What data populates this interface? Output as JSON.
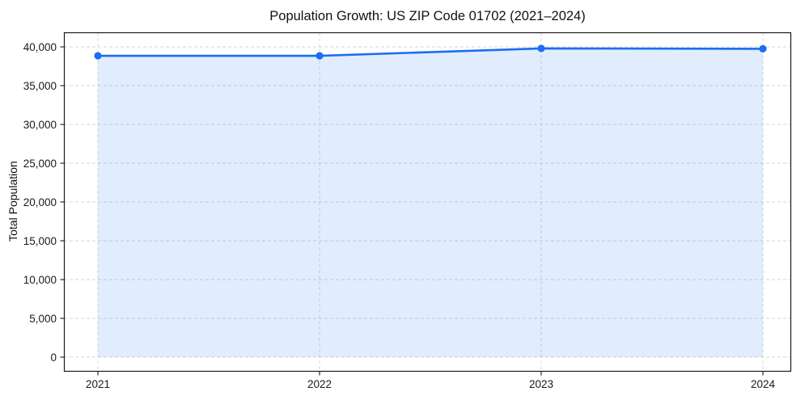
{
  "chart_data": {
    "type": "area",
    "title": "Population Growth: US ZIP Code 01702 (2021–2024)",
    "xlabel": "",
    "ylabel": "Total Population",
    "x": [
      "2021",
      "2022",
      "2023",
      "2024"
    ],
    "xtick_labels": [
      "2021",
      "2022",
      "2023",
      "2024"
    ],
    "values": [
      38850,
      38850,
      39800,
      39750
    ],
    "yticks": [
      0,
      5000,
      10000,
      15000,
      20000,
      25000,
      30000,
      35000,
      40000
    ],
    "ytick_labels": [
      "0",
      "5,000",
      "10,000",
      "15,000",
      "20,000",
      "25,000",
      "30,000",
      "35,000",
      "40,000"
    ],
    "ylim": [
      -1900,
      41900
    ],
    "grid": true,
    "grid_style": "dashed",
    "legend": false,
    "markers": true,
    "colors": {
      "line": "#1a6ef0",
      "fill": "#1a6ef0",
      "fill_opacity": 0.13,
      "grid": "#d6d6d6",
      "spine": "#1a1a1a",
      "tick_label": "#1a1a1a",
      "title": "#111111",
      "background": "#ffffff"
    }
  }
}
